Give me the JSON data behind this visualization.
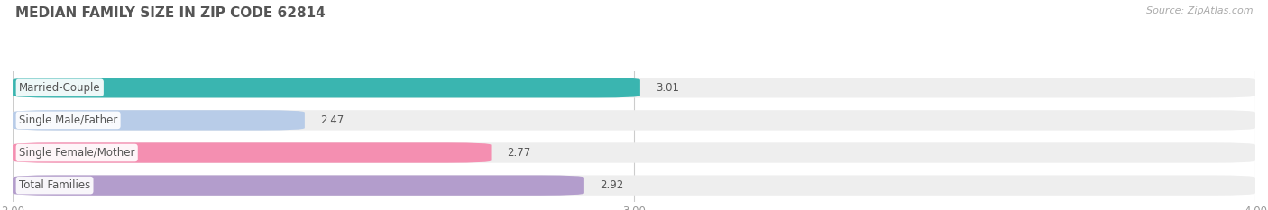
{
  "title": "MEDIAN FAMILY SIZE IN ZIP CODE 62814",
  "source": "Source: ZipAtlas.com",
  "categories": [
    "Married-Couple",
    "Single Male/Father",
    "Single Female/Mother",
    "Total Families"
  ],
  "values": [
    3.01,
    2.47,
    2.77,
    2.92
  ],
  "bar_colors": [
    "#3ab5b0",
    "#b8cce8",
    "#f48fb1",
    "#b39dcc"
  ],
  "xlim": [
    2.0,
    4.0
  ],
  "xticks": [
    2.0,
    3.0,
    4.0
  ],
  "bar_height": 0.62,
  "bar_gap": 0.18,
  "label_fontsize": 8.5,
  "value_fontsize": 8.5,
  "title_fontsize": 11,
  "source_fontsize": 8,
  "background_color": "#ffffff",
  "bar_bg_color": "#eeeeee",
  "grid_color": "#cccccc",
  "text_color": "#555555",
  "tick_color": "#999999"
}
